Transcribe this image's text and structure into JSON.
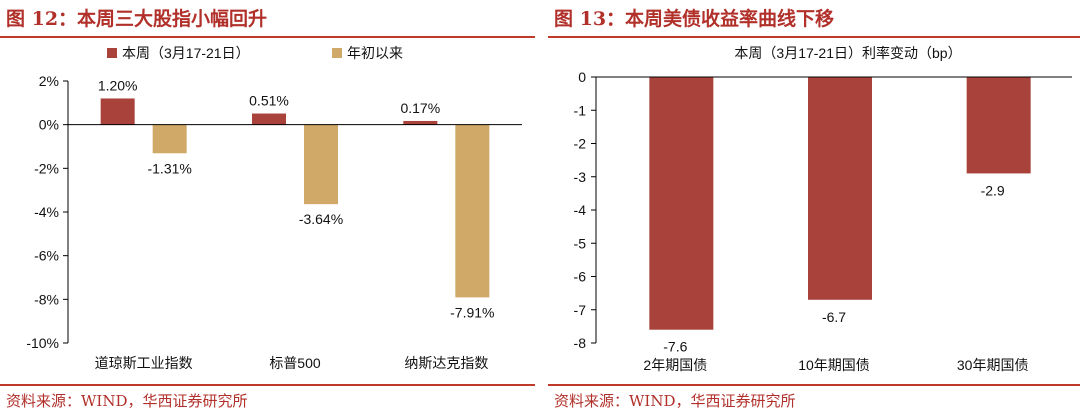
{
  "colors": {
    "accent": "#b1302a",
    "bar_red": "#a8423a",
    "bar_gold": "#d0a868"
  },
  "left": {
    "title": "图 12：本周三大股指小幅回升",
    "source": "资料来源：WIND，华西证券研究所",
    "chart_data": {
      "type": "bar",
      "categories": [
        "道琼斯工业指数",
        "标普500",
        "纳斯达克指数"
      ],
      "series": [
        {
          "name": "本周（3月17-21日）",
          "values": [
            1.2,
            0.51,
            0.17
          ],
          "labels": [
            "1.20%",
            "0.51%",
            "0.17%"
          ]
        },
        {
          "name": "年初以来",
          "values": [
            -1.31,
            -3.64,
            -7.91
          ],
          "labels": [
            "-1.31%",
            "-3.64%",
            "-7.91%"
          ]
        }
      ],
      "ylim": [
        -10,
        2
      ],
      "yticks": [
        2,
        0,
        -2,
        -4,
        -6,
        -8,
        -10
      ],
      "ytick_labels": [
        "2%",
        "0%",
        "-2%",
        "-4%",
        "-6%",
        "-8%",
        "-10%"
      ],
      "legend": "top-center",
      "grid": false,
      "xlabel": "",
      "ylabel": ""
    }
  },
  "right": {
    "title": "图 13：本周美债收益率曲线下移",
    "source": "资料来源：WIND，华西证券研究所",
    "chart_data": {
      "type": "bar",
      "title": "本周（3月17-21日）利率变动（bp）",
      "categories": [
        "2年期国债",
        "10年期国债",
        "30年期国债"
      ],
      "series": [
        {
          "values": [
            -7.6,
            -6.7,
            -2.9
          ],
          "labels": [
            "-7.6",
            "-6.7",
            "-2.9"
          ]
        }
      ],
      "ylim": [
        -8,
        0
      ],
      "yticks": [
        0,
        -1,
        -2,
        -3,
        -4,
        -5,
        -6,
        -7,
        -8
      ],
      "ytick_labels": [
        "0",
        "-1",
        "-2",
        "-3",
        "-4",
        "-5",
        "-6",
        "-7",
        "-8"
      ],
      "grid": false,
      "xlabel": "",
      "ylabel": ""
    }
  }
}
